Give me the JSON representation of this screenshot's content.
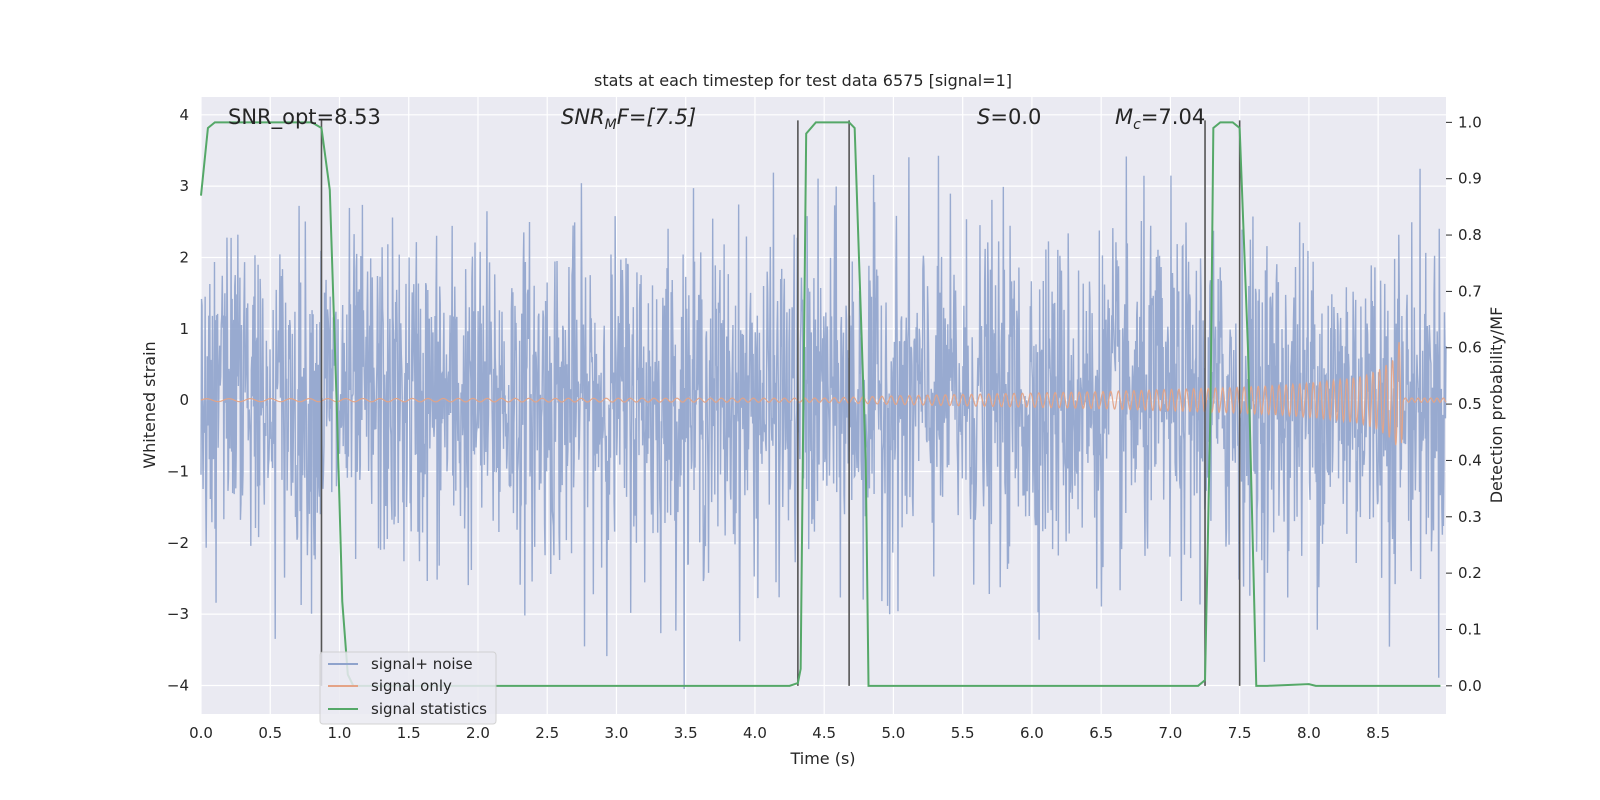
{
  "chart_data": {
    "type": "line",
    "title": "stats at each timestep for test data 6575 [signal=1]",
    "xlabel": "Time (s)",
    "ylabel": "Whitened strain",
    "ylabel_right": "Detection probability/MF",
    "xlim": [
      0,
      8.99
    ],
    "ylim": [
      -4.4,
      4.25
    ],
    "ylim_right": [
      -0.05,
      1.045
    ],
    "xticks": [
      "0.0",
      "0.5",
      "1.0",
      "1.5",
      "2.0",
      "2.5",
      "3.0",
      "3.5",
      "4.0",
      "4.5",
      "5.0",
      "5.5",
      "6.0",
      "6.5",
      "7.0",
      "7.5",
      "8.0",
      "8.5"
    ],
    "xtick_values": [
      0,
      0.5,
      1.0,
      1.5,
      2.0,
      2.5,
      3.0,
      3.5,
      4.0,
      4.5,
      5.0,
      5.5,
      6.0,
      6.5,
      7.0,
      7.5,
      8.0,
      8.5
    ],
    "yticks": [
      "4",
      "3",
      "2",
      "1",
      "0",
      "−1",
      "−2",
      "−3",
      "−4"
    ],
    "ytick_values": [
      4,
      3,
      2,
      1,
      0,
      -1,
      -2,
      -3,
      -4
    ],
    "yticks_right": [
      "1.0",
      "0.9",
      "0.8",
      "0.7",
      "0.6",
      "0.5",
      "0.4",
      "0.3",
      "0.2",
      "0.1",
      "0.0"
    ],
    "ytick_values_right": [
      1.0,
      0.9,
      0.8,
      0.7,
      0.6,
      0.5,
      0.4,
      0.3,
      0.2,
      0.1,
      0.0
    ],
    "grid": true,
    "legend_position": "bottom-left",
    "annotations": {
      "snr_opt": "SNR_opt=8.53",
      "snr_mf_base": "SNR",
      "snr_mf_sub": "M",
      "snr_mf_rest": "F=[7.5]",
      "s_italic": "S",
      "s_rest": "=0.0",
      "mc_base": "M",
      "mc_sub": "c",
      "mc_rest": "=7.04"
    },
    "series": [
      {
        "name": "signal+ noise",
        "color": "#8fa3cc",
        "note": "whitened noise with signal, amplitude envelope about ±2.2, spikes to about ±4"
      },
      {
        "name": "signal only",
        "color": "#dd8452",
        "envelope": {
          "t": [
            0,
            4.5,
            5.0,
            5.5,
            6.0,
            6.5,
            7.0,
            7.5,
            7.8,
            8.0,
            8.2,
            8.4,
            8.5,
            8.6,
            8.63,
            8.655,
            8.665,
            8.68,
            8.99
          ],
          "amp": [
            0.02,
            0.03,
            0.06,
            0.08,
            0.1,
            0.12,
            0.15,
            0.18,
            0.21,
            0.24,
            0.28,
            0.34,
            0.42,
            0.55,
            0.64,
            0.85,
            1.0,
            0.03,
            0.03
          ]
        }
      },
      {
        "name": "signal statistics",
        "color": "#55a868",
        "t": [
          0,
          0.05,
          0.1,
          0.2,
          0.5,
          0.8,
          0.87,
          0.93,
          0.98,
          1.02,
          1.06,
          1.1,
          1.2,
          2.0,
          3.0,
          4.0,
          4.25,
          4.31,
          4.33,
          4.37,
          4.44,
          4.5,
          4.6,
          4.68,
          4.72,
          4.8,
          4.82,
          4.9,
          5.5,
          6.5,
          7.0,
          7.2,
          7.25,
          7.29,
          7.31,
          7.36,
          7.45,
          7.5,
          7.56,
          7.62,
          7.7,
          8.0,
          8.05,
          8.5,
          8.95
        ],
        "values": [
          0.87,
          0.99,
          1.0,
          1.0,
          1.0,
          1.0,
          0.99,
          0.88,
          0.5,
          0.15,
          0.02,
          0.0,
          0.0,
          0.0,
          0.0,
          0.0,
          0.0,
          0.005,
          0.03,
          0.98,
          1.0,
          1.0,
          1.0,
          1.0,
          0.99,
          0.4,
          0.0,
          0.0,
          0.0,
          0.0,
          0.0,
          0.0,
          0.01,
          0.5,
          0.99,
          1.0,
          1.0,
          0.99,
          0.6,
          0.0,
          0.0,
          0.003,
          0.0,
          0.0,
          0.0
        ]
      }
    ],
    "vlines": [
      0.87,
      4.31,
      4.68,
      7.25,
      7.5
    ]
  }
}
